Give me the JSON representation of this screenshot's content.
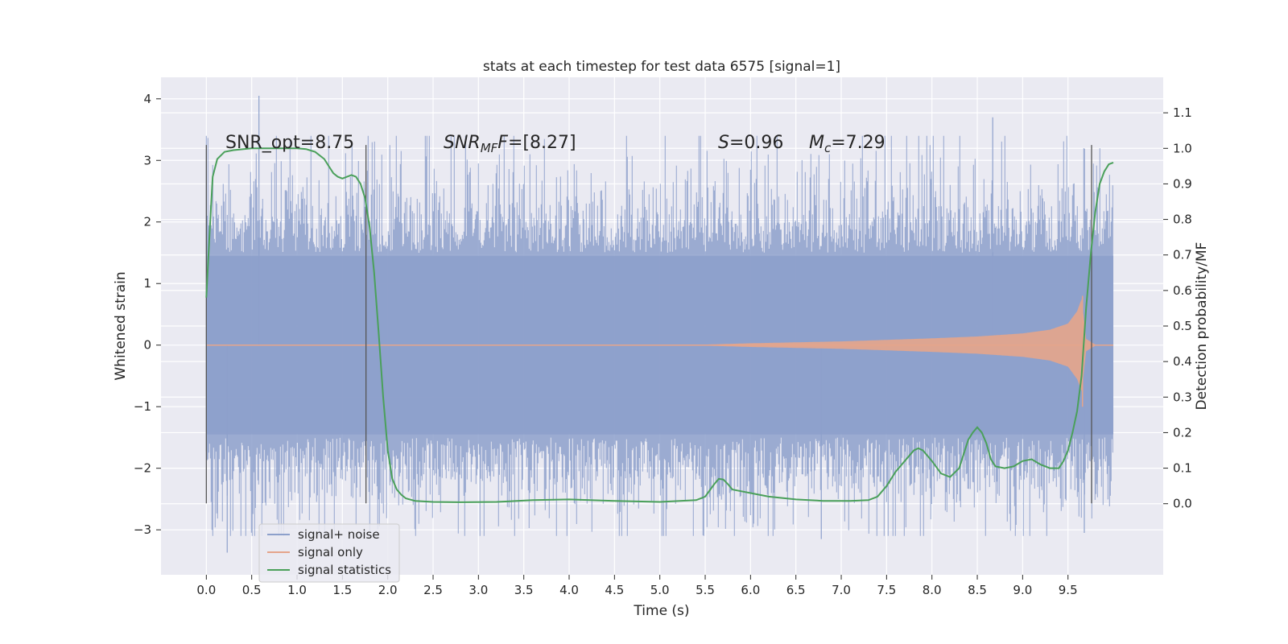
{
  "chart_data": {
    "type": "line",
    "title": "stats at each timestep for test data 6575 [signal=1]",
    "xlabel": "Time (s)",
    "ylabel": "Whitened strain",
    "ylabel_right": "Detection probability/MF",
    "xlim": [
      -0.5,
      10.55
    ],
    "ylim": [
      -3.73,
      4.35
    ],
    "ylim_right": [
      -0.2,
      1.2
    ],
    "grid": true,
    "x_ticks": [
      "0.0",
      "0.5",
      "1.0",
      "1.5",
      "2.0",
      "2.5",
      "3.0",
      "3.5",
      "4.0",
      "4.5",
      "5.0",
      "5.5",
      "6.0",
      "6.5",
      "7.0",
      "7.5",
      "8.0",
      "8.5",
      "9.0",
      "9.5"
    ],
    "y_ticks": [
      "−3",
      "−2",
      "−1",
      "0",
      "1",
      "2",
      "3",
      "4"
    ],
    "y_ticks_right": [
      "0.0",
      "0.1",
      "0.2",
      "0.3",
      "0.4",
      "0.5",
      "0.6",
      "0.7",
      "0.8",
      "0.9",
      "1.0",
      "1.1"
    ],
    "annotations": {
      "snr_opt": "SNR_opt=8.75",
      "snr_mf_main": "SNR",
      "snr_mf_sub": "MF",
      "snr_mf_value": "=[8.27]",
      "s_label": "S",
      "s_value": "=0.96",
      "mc_label": "M",
      "mc_sub": "c",
      "mc_value": "=7.29"
    },
    "vertical_lines_x": [
      0.0,
      1.76,
      9.76
    ],
    "series": [
      {
        "name": "signal+ noise",
        "color": "#8da0cb",
        "x_range": [
          0,
          10.0
        ],
        "envelope_core": 1.5,
        "envelope_max_observed": 4.05,
        "envelope_min_observed": -3.37
      },
      {
        "name": "signal only",
        "color": "#e5a58b",
        "chirp_x": [
          0,
          5.3,
          6.0,
          7.0,
          8.0,
          8.5,
          9.0,
          9.3,
          9.5,
          9.6,
          9.65,
          9.7,
          9.8,
          10.0
        ],
        "chirp_amp": [
          0,
          0,
          0.03,
          0.06,
          0.11,
          0.14,
          0.19,
          0.25,
          0.35,
          0.55,
          0.75,
          0.1,
          0.01,
          0
        ]
      },
      {
        "name": "signal statistics",
        "color": "#4aa05a",
        "x": [
          0.0,
          0.04,
          0.07,
          0.12,
          0.2,
          0.3,
          0.5,
          0.8,
          1.0,
          1.1,
          1.2,
          1.3,
          1.35,
          1.4,
          1.45,
          1.5,
          1.55,
          1.6,
          1.65,
          1.7,
          1.75,
          1.8,
          1.85,
          1.9,
          1.95,
          2.0,
          2.05,
          2.1,
          2.15,
          2.2,
          2.3,
          2.5,
          2.8,
          3.2,
          3.6,
          4.0,
          4.5,
          5.0,
          5.4,
          5.5,
          5.6,
          5.65,
          5.7,
          5.75,
          5.8,
          5.9,
          6.0,
          6.2,
          6.5,
          6.8,
          7.1,
          7.3,
          7.4,
          7.5,
          7.6,
          7.7,
          7.8,
          7.85,
          7.9,
          8.0,
          8.1,
          8.2,
          8.3,
          8.4,
          8.45,
          8.5,
          8.55,
          8.6,
          8.65,
          8.7,
          8.8,
          8.9,
          9.0,
          9.1,
          9.2,
          9.3,
          9.4,
          9.45,
          9.5,
          9.55,
          9.6,
          9.65,
          9.7,
          9.75,
          9.8,
          9.85,
          9.9,
          9.95,
          10.0
        ],
        "y": [
          0.58,
          0.78,
          0.92,
          0.97,
          0.99,
          0.995,
          1.0,
          1.0,
          1.0,
          0.998,
          0.99,
          0.97,
          0.95,
          0.93,
          0.92,
          0.915,
          0.92,
          0.925,
          0.92,
          0.9,
          0.86,
          0.78,
          0.65,
          0.48,
          0.3,
          0.15,
          0.07,
          0.04,
          0.025,
          0.015,
          0.008,
          0.005,
          0.004,
          0.005,
          0.01,
          0.012,
          0.008,
          0.005,
          0.01,
          0.02,
          0.055,
          0.07,
          0.068,
          0.055,
          0.04,
          0.035,
          0.03,
          0.02,
          0.012,
          0.008,
          0.008,
          0.01,
          0.02,
          0.05,
          0.09,
          0.12,
          0.15,
          0.156,
          0.15,
          0.12,
          0.085,
          0.075,
          0.1,
          0.18,
          0.2,
          0.215,
          0.2,
          0.17,
          0.125,
          0.105,
          0.1,
          0.105,
          0.12,
          0.125,
          0.11,
          0.1,
          0.1,
          0.12,
          0.15,
          0.2,
          0.26,
          0.36,
          0.55,
          0.7,
          0.82,
          0.9,
          0.935,
          0.955,
          0.96
        ]
      }
    ],
    "legend": {
      "placement": "lower-left",
      "entries": [
        "signal+ noise",
        "signal only",
        "signal statistics"
      ]
    }
  }
}
